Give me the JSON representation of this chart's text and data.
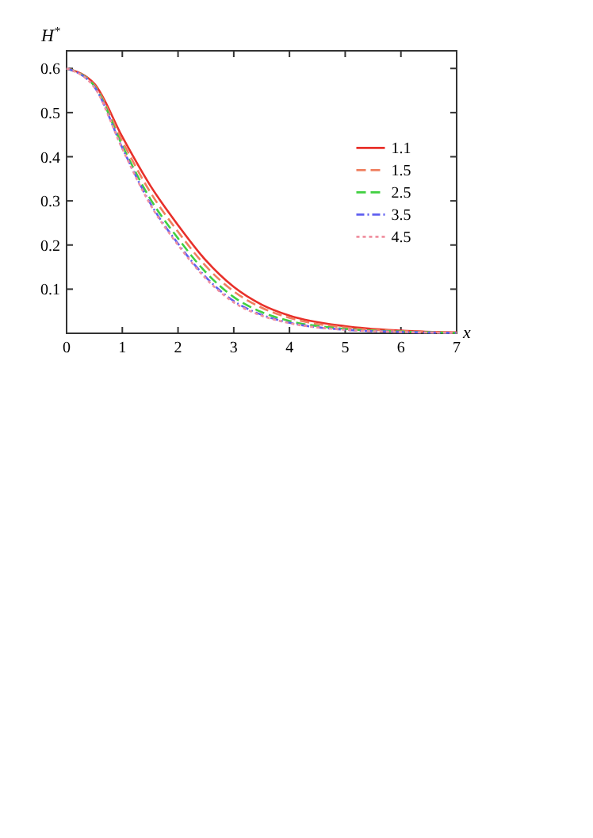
{
  "chart_data": {
    "type": "line",
    "xlabel": "x",
    "ylabel": "H$^{*}$",
    "x": [
      0,
      0.5,
      1,
      1.5,
      2,
      2.5,
      3,
      3.5,
      4,
      5,
      6,
      7
    ],
    "xlim": [
      0,
      7
    ],
    "ylim": [
      0,
      0.64
    ],
    "xticks": [
      0,
      1,
      2,
      3,
      4,
      5,
      6,
      7
    ],
    "yticks": [
      0.1,
      0.2,
      0.3,
      0.4,
      0.5,
      0.6
    ],
    "legend": "right",
    "grid": false,
    "series": [
      {
        "name": "1.1",
        "color": "#e8302a",
        "line_style": "solid",
        "values": [
          0.6,
          0.565,
          0.445,
          0.335,
          0.245,
          0.165,
          0.105,
          0.065,
          0.04,
          0.016,
          0.006,
          0.002
        ]
      },
      {
        "name": "1.5",
        "color": "#f08060",
        "line_style": "dashed",
        "values": [
          0.6,
          0.562,
          0.435,
          0.32,
          0.23,
          0.152,
          0.095,
          0.058,
          0.035,
          0.013,
          0.005,
          0.002
        ]
      },
      {
        "name": "2.5",
        "color": "#40d040",
        "line_style": "dashed",
        "values": [
          0.6,
          0.56,
          0.425,
          0.305,
          0.215,
          0.138,
          0.082,
          0.048,
          0.028,
          0.01,
          0.004,
          0.001
        ]
      },
      {
        "name": "3.5",
        "color": "#6060f0",
        "line_style": "dashdot",
        "values": [
          0.6,
          0.558,
          0.42,
          0.295,
          0.203,
          0.127,
          0.073,
          0.042,
          0.024,
          0.008,
          0.003,
          0.001
        ]
      },
      {
        "name": "4.5",
        "color": "#f090a0",
        "line_style": "dotted",
        "values": [
          0.6,
          0.557,
          0.418,
          0.292,
          0.2,
          0.124,
          0.07,
          0.04,
          0.023,
          0.008,
          0.003,
          0.001
        ]
      }
    ]
  }
}
